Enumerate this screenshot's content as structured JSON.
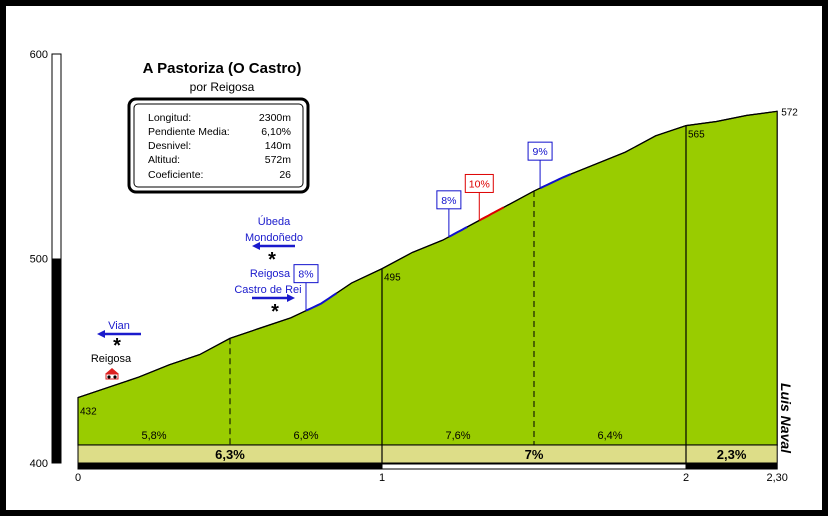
{
  "header": {
    "title": "A Pastoriza (O Castro)",
    "subtitle": "por Reigosa"
  },
  "stats": [
    {
      "label": "Longitud:",
      "value": "2300m"
    },
    {
      "label": "Pendiente Media:",
      "value": "6,10%"
    },
    {
      "label": "Desnivel:",
      "value": "140m"
    },
    {
      "label": "Altitud:",
      "value": "572m"
    },
    {
      "label": "Coeficiente:",
      "value": "26"
    }
  ],
  "credit": "Luis Naval",
  "colors": {
    "profile_fill": "#99CC00",
    "segment_band": "#DDDD88",
    "marker_blue": "#1111CC",
    "marker_red": "#DD0000",
    "label_blue": "#1A1ACC"
  },
  "places": [
    {
      "name": "Vian",
      "km": 0.12,
      "arrow": "left",
      "icon": "asterisk-icon"
    },
    {
      "name": "Reigosa",
      "km": 0.12,
      "icon": "house-icon"
    },
    {
      "name": "Úbeda\nMondoñedo",
      "km": 0.63,
      "arrow": "left",
      "icon": "asterisk-icon"
    },
    {
      "name": "Reigosa\nCastro de Rei",
      "km": 0.63,
      "arrow": "right",
      "icon": "asterisk-icon"
    }
  ],
  "chart_data": {
    "type": "area",
    "xlabel": "",
    "ylabel": "",
    "x_unit": "km",
    "y_unit": "m",
    "xlim": [
      0,
      2.3
    ],
    "ylim": [
      400,
      600
    ],
    "x_ticks": [
      {
        "value": 0,
        "label": "0"
      },
      {
        "value": 1,
        "label": "1"
      },
      {
        "value": 2,
        "label": "2"
      },
      {
        "value": 2.3,
        "label": "2,30"
      }
    ],
    "y_ticks": [
      {
        "value": 400,
        "label": "400"
      },
      {
        "value": 500,
        "label": "500"
      },
      {
        "value": 600,
        "label": "600"
      }
    ],
    "profile": [
      {
        "x": 0,
        "y": 432
      },
      {
        "x": 0.1,
        "y": 437
      },
      {
        "x": 0.2,
        "y": 442
      },
      {
        "x": 0.3,
        "y": 448
      },
      {
        "x": 0.4,
        "y": 453
      },
      {
        "x": 0.5,
        "y": 461
      },
      {
        "x": 0.6,
        "y": 466
      },
      {
        "x": 0.7,
        "y": 471
      },
      {
        "x": 0.8,
        "y": 478
      },
      {
        "x": 0.9,
        "y": 488
      },
      {
        "x": 1.0,
        "y": 495
      },
      {
        "x": 1.1,
        "y": 503
      },
      {
        "x": 1.2,
        "y": 509
      },
      {
        "x": 1.3,
        "y": 517
      },
      {
        "x": 1.4,
        "y": 525
      },
      {
        "x": 1.5,
        "y": 533
      },
      {
        "x": 1.6,
        "y": 540
      },
      {
        "x": 1.7,
        "y": 546
      },
      {
        "x": 1.8,
        "y": 552
      },
      {
        "x": 1.9,
        "y": 560
      },
      {
        "x": 2.0,
        "y": 565
      },
      {
        "x": 2.1,
        "y": 567
      },
      {
        "x": 2.2,
        "y": 570
      },
      {
        "x": 2.3,
        "y": 572
      }
    ],
    "point_labels": [
      {
        "x": 0,
        "y": 432,
        "label": "432"
      },
      {
        "x": 1.0,
        "y": 495,
        "label": "495"
      },
      {
        "x": 2.0,
        "y": 565,
        "label": "565"
      },
      {
        "x": 2.3,
        "y": 572,
        "label": "572"
      }
    ],
    "segments_500m": [
      {
        "from": 0,
        "to": 0.5,
        "grade": "5,8%"
      },
      {
        "from": 0.5,
        "to": 1.0,
        "grade": "6,8%"
      },
      {
        "from": 1.0,
        "to": 1.5,
        "grade": "7,6%"
      },
      {
        "from": 1.5,
        "to": 2.0,
        "grade": "6,4%"
      }
    ],
    "segments_km": [
      {
        "from": 0,
        "to": 1.0,
        "grade": "6,3%"
      },
      {
        "from": 1.0,
        "to": 2.0,
        "grade": "7%"
      },
      {
        "from": 2.0,
        "to": 2.3,
        "grade": "2,3%"
      }
    ],
    "steep_markers": [
      {
        "from": 0.75,
        "to": 0.85,
        "grade": "8%",
        "color": "blue"
      },
      {
        "from": 1.22,
        "to": 1.28,
        "grade": "8%",
        "color": "blue"
      },
      {
        "from": 1.32,
        "to": 1.4,
        "grade": "10%",
        "color": "red"
      },
      {
        "from": 1.52,
        "to": 1.62,
        "grade": "9%",
        "color": "blue"
      }
    ]
  }
}
